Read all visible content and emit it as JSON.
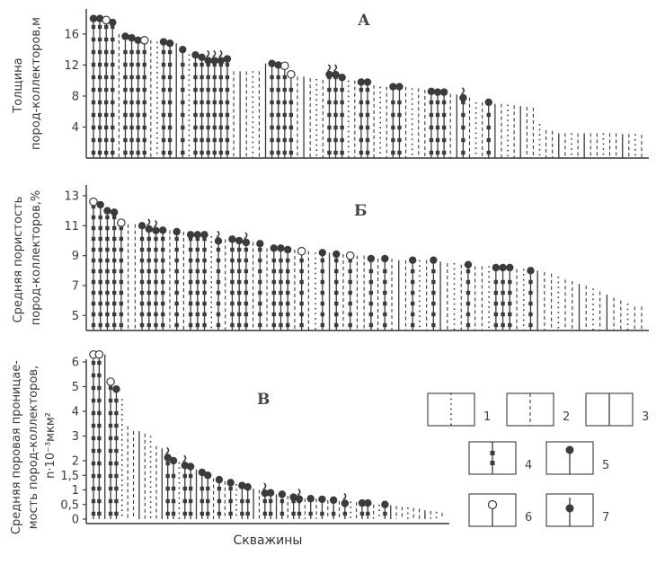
{
  "chart_data": [
    {
      "type": "bar",
      "title": "А",
      "ylabel_lines": [
        "Толщина",
        "пород-коллекторов,м"
      ],
      "yticks": [
        "4",
        "8",
        "12",
        "16"
      ],
      "ylim": [
        0,
        19
      ],
      "values": [
        18,
        18,
        17.8,
        17.5,
        16,
        15.7,
        15.5,
        15.2,
        15.2,
        15.2,
        15,
        15,
        14.8,
        14.8,
        14,
        13.4,
        13.3,
        13,
        12.8,
        12.8,
        12.8,
        12.8,
        11.2,
        11.2,
        11.2,
        11.2,
        11.2,
        12.2,
        12.2,
        12,
        11.9,
        10.8,
        10.5,
        10.5,
        10.3,
        10.2,
        10.1,
        11,
        11,
        10.4,
        10,
        10,
        9.8,
        9.8,
        9.4,
        9.2,
        9.2,
        9.2,
        9.2,
        9.2,
        9,
        9,
        8.8,
        8.6,
        8.5,
        8.5,
        8.3,
        8.2,
        8,
        7.8,
        7.2,
        7.2,
        7.2,
        7,
        7,
        6.9,
        6.8,
        6.7,
        6.6,
        6.5,
        4.4,
        3.6,
        3.5,
        3.2,
        3.2,
        3.2,
        3.2,
        3.2,
        3.2,
        3.2,
        3.2,
        3.2,
        3.2,
        3.1,
        3.1,
        3.1,
        3
      ],
      "grid": false
    },
    {
      "type": "bar",
      "title": "Б",
      "ylabel_lines": [
        "Средняя пористость",
        "пород-коллекторов,%"
      ],
      "yticks": [
        "5",
        "7",
        "9",
        "11",
        "13"
      ],
      "ylim": [
        4,
        13.3
      ],
      "values": [
        12.6,
        12.4,
        12,
        11.9,
        11.2,
        11.1,
        11.1,
        11,
        10.9,
        10.8,
        10.7,
        10.7,
        10.6,
        10.6,
        10.4,
        10.4,
        10.4,
        10.3,
        10.1,
        10.1,
        10.1,
        10,
        10,
        9.9,
        9.8,
        9.5,
        9.5,
        9.5,
        9.4,
        9.4,
        9.3,
        9.3,
        9.2,
        9.2,
        9.2,
        9.1,
        9.1,
        9,
        9,
        9,
        8.8,
        8.8,
        8.8,
        8.8,
        8.7,
        8.7,
        8.7,
        8.7,
        8.7,
        8.7,
        8.6,
        8.5,
        8.5,
        8.4,
        8.4,
        8.3,
        8.3,
        8.3,
        8.2,
        8.2,
        8.2,
        8.1,
        8.1,
        8,
        8,
        7.9,
        7.8,
        7.6,
        7.4,
        7.3,
        7.1,
        7,
        6.8,
        6.6,
        6.4,
        6.2,
        6,
        5.8,
        5.6,
        5.6
      ],
      "grid": false
    },
    {
      "type": "bar",
      "title": "В",
      "ylabel_lines": [
        "Средняя поровая проницае-",
        "мость пород-коллекторов,",
        "n·10⁻³мкм²"
      ],
      "yticks": [
        "0",
        "0,5",
        "1",
        "1,5",
        "2",
        "3",
        "4",
        "5",
        "6"
      ],
      "xlabel": "Скважины",
      "values": [
        6.3,
        6.3,
        6.3,
        5.2,
        4.9,
        4.5,
        3.4,
        3.2,
        3.2,
        3.1,
        3.0,
        2.6,
        2.5,
        2.2,
        2.0,
        1.95,
        1.9,
        1.8,
        1.7,
        1.6,
        1.5,
        1.4,
        1.35,
        1.3,
        1.25,
        1.2,
        1.15,
        1.1,
        1.05,
        1.0,
        0.95,
        0.9,
        0.85,
        0.85,
        0.8,
        0.75,
        0.75,
        0.7,
        0.7,
        0.7,
        0.68,
        0.65,
        0.65,
        0.62,
        0.6,
        0.6,
        0.58,
        0.55,
        0.55,
        0.5,
        0.5,
        0.5,
        0.48,
        0.45,
        0.42,
        0.4,
        0.38,
        0.35,
        0.3,
        0.28,
        0.25,
        0.22
      ],
      "grid": false
    }
  ],
  "legend": [
    {
      "key": "1",
      "type": "dotted"
    },
    {
      "key": "2",
      "type": "dashed"
    },
    {
      "key": "3",
      "type": "solid"
    },
    {
      "key": "4",
      "type": "solid-with-squares"
    },
    {
      "key": "5",
      "type": "filled-circle"
    },
    {
      "key": "6",
      "type": "open-circle"
    },
    {
      "key": "7",
      "type": "filled-circle-mid"
    }
  ]
}
